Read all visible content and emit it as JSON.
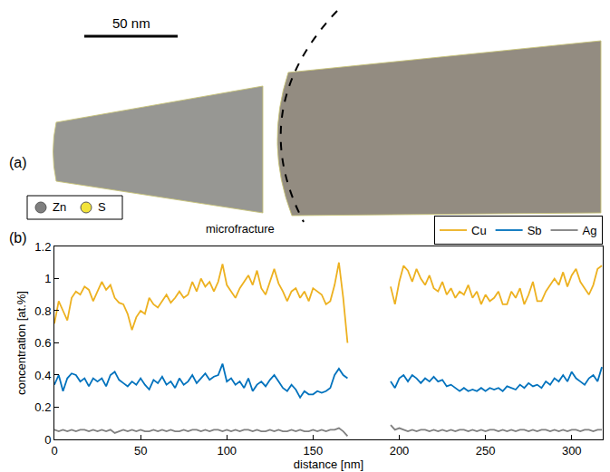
{
  "panel_a": {
    "label": "(a)",
    "scale_bar": "50 nm",
    "annotation": "microfracture",
    "legend": [
      {
        "name": "Zn",
        "color": "#7f7f7f"
      },
      {
        "name": "S",
        "color": "#f2e33a"
      }
    ]
  },
  "chart_data": {
    "type": "line",
    "panel_label": "(b)",
    "x_label": "distance [nm]",
    "y_label": "concentration [at.%]",
    "xlim": [
      0,
      318
    ],
    "xticks": [
      0,
      50,
      100,
      150,
      200,
      250,
      300
    ],
    "ylim": [
      0,
      1.2
    ],
    "yticks": [
      0,
      0.2,
      0.4,
      0.6,
      0.8,
      1,
      1.2
    ],
    "grid": false,
    "legend": "top right",
    "x": [
      0,
      2.5,
      5,
      7.5,
      10,
      12.5,
      15,
      17.5,
      20,
      22.5,
      25,
      27.5,
      30,
      32.5,
      35,
      37.5,
      40,
      42.5,
      45,
      47.5,
      50,
      52.5,
      55,
      57.5,
      60,
      62.5,
      65,
      67.5,
      70,
      72.5,
      75,
      77.5,
      80,
      82.5,
      85,
      87.5,
      90,
      92.5,
      95,
      97.5,
      100,
      102.5,
      105,
      107.5,
      110,
      112.5,
      115,
      117.5,
      120,
      122.5,
      125,
      127.5,
      130,
      132.5,
      135,
      137.5,
      140,
      142.5,
      145,
      147.5,
      150,
      152.5,
      155,
      157.5,
      160,
      162.5,
      165,
      167.5,
      170,
      182.5,
      195,
      197.5,
      200,
      202.5,
      205,
      207.5,
      210,
      212.5,
      215,
      217.5,
      220,
      222.5,
      225,
      227.5,
      230,
      232.5,
      235,
      237.5,
      240,
      242.5,
      245,
      247.5,
      250,
      252.5,
      255,
      257.5,
      260,
      262.5,
      265,
      267.5,
      270,
      272.5,
      275,
      277.5,
      280,
      282.5,
      285,
      287.5,
      290,
      292.5,
      295,
      297.5,
      300,
      302.5,
      305,
      307.5,
      310,
      312.5,
      315,
      317.5
    ],
    "series": [
      {
        "name": "Cu",
        "color": "#edb120",
        "values": [
          0.72,
          0.86,
          0.8,
          0.74,
          0.88,
          0.92,
          0.9,
          0.95,
          0.93,
          0.86,
          0.92,
          0.98,
          0.93,
          0.96,
          0.88,
          0.85,
          0.84,
          0.78,
          0.68,
          0.76,
          0.8,
          0.78,
          0.88,
          0.84,
          0.82,
          0.86,
          0.9,
          0.85,
          0.88,
          0.92,
          0.88,
          0.9,
          0.98,
          0.92,
          1.0,
          0.95,
          0.98,
          0.92,
          0.98,
          1.09,
          0.96,
          0.92,
          0.88,
          0.94,
          0.98,
          1.02,
          0.96,
          1.05,
          0.94,
          0.9,
          0.98,
          1.06,
          0.97,
          0.92,
          0.86,
          0.92,
          0.94,
          0.88,
          0.92,
          0.86,
          0.94,
          0.92,
          0.9,
          0.84,
          0.86,
          0.96,
          1.1,
          0.88,
          0.6,
          null,
          0.95,
          0.84,
          0.98,
          1.08,
          1.05,
          0.98,
          1.06,
          1.0,
          0.96,
          1.02,
          0.94,
          0.92,
          0.98,
          0.9,
          0.94,
          0.88,
          0.92,
          0.9,
          0.96,
          0.88,
          0.92,
          0.84,
          0.9,
          0.86,
          0.88,
          0.92,
          0.84,
          0.84,
          0.92,
          0.88,
          0.94,
          0.84,
          0.9,
          0.98,
          0.86,
          0.86,
          0.92,
          0.96,
          1.0,
          0.96,
          1.04,
          0.95,
          1.02,
          1.06,
          0.98,
          0.94,
          0.9,
          0.96,
          1.06,
          1.08
        ]
      },
      {
        "name": "Sb",
        "color": "#0072bd",
        "values": [
          0.34,
          0.4,
          0.3,
          0.38,
          0.41,
          0.4,
          0.36,
          0.38,
          0.33,
          0.38,
          0.36,
          0.38,
          0.33,
          0.4,
          0.42,
          0.37,
          0.35,
          0.33,
          0.36,
          0.34,
          0.38,
          0.34,
          0.31,
          0.37,
          0.35,
          0.39,
          0.34,
          0.36,
          0.32,
          0.38,
          0.34,
          0.36,
          0.4,
          0.35,
          0.38,
          0.41,
          0.37,
          0.39,
          0.4,
          0.47,
          0.36,
          0.38,
          0.34,
          0.36,
          0.32,
          0.38,
          0.3,
          0.34,
          0.36,
          0.33,
          0.37,
          0.4,
          0.36,
          0.32,
          0.3,
          0.34,
          0.31,
          0.26,
          0.3,
          0.28,
          0.28,
          0.3,
          0.29,
          0.3,
          0.32,
          0.4,
          0.44,
          0.4,
          0.38,
          null,
          0.36,
          0.32,
          0.38,
          0.4,
          0.36,
          0.4,
          0.38,
          0.35,
          0.38,
          0.36,
          0.39,
          0.36,
          0.37,
          0.33,
          0.34,
          0.32,
          0.3,
          0.32,
          0.3,
          0.31,
          0.3,
          0.32,
          0.3,
          0.32,
          0.31,
          0.32,
          0.3,
          0.33,
          0.32,
          0.31,
          0.34,
          0.32,
          0.35,
          0.33,
          0.34,
          0.32,
          0.36,
          0.34,
          0.38,
          0.36,
          0.4,
          0.36,
          0.42,
          0.38,
          0.36,
          0.34,
          0.38,
          0.4,
          0.36,
          0.45
        ]
      },
      {
        "name": "Ag",
        "color": "#808080",
        "values": [
          0.06,
          0.05,
          0.06,
          0.05,
          0.06,
          0.05,
          0.06,
          0.06,
          0.05,
          0.06,
          0.05,
          0.06,
          0.05,
          0.06,
          0.04,
          0.05,
          0.06,
          0.05,
          0.06,
          0.05,
          0.06,
          0.05,
          0.05,
          0.06,
          0.05,
          0.06,
          0.05,
          0.06,
          0.05,
          0.05,
          0.06,
          0.05,
          0.06,
          0.06,
          0.05,
          0.06,
          0.05,
          0.06,
          0.06,
          0.05,
          0.06,
          0.05,
          0.06,
          0.05,
          0.06,
          0.06,
          0.05,
          0.06,
          0.05,
          0.05,
          0.06,
          0.05,
          0.06,
          0.05,
          0.05,
          0.06,
          0.05,
          0.06,
          0.05,
          0.05,
          0.06,
          0.05,
          0.06,
          0.05,
          0.06,
          0.06,
          0.07,
          0.05,
          0.02,
          null,
          0.09,
          0.06,
          0.07,
          0.06,
          0.05,
          0.06,
          0.05,
          0.06,
          0.06,
          0.05,
          0.06,
          0.05,
          0.06,
          0.05,
          0.06,
          0.05,
          0.06,
          0.06,
          0.05,
          0.06,
          0.05,
          0.06,
          0.05,
          0.06,
          0.06,
          0.05,
          0.06,
          0.05,
          0.06,
          0.05,
          0.06,
          0.06,
          0.05,
          0.06,
          0.05,
          0.06,
          0.06,
          0.05,
          0.06,
          0.05,
          0.06,
          0.05,
          0.06,
          0.06,
          0.05,
          0.06,
          0.06,
          0.05,
          0.06,
          0.06
        ]
      }
    ]
  }
}
